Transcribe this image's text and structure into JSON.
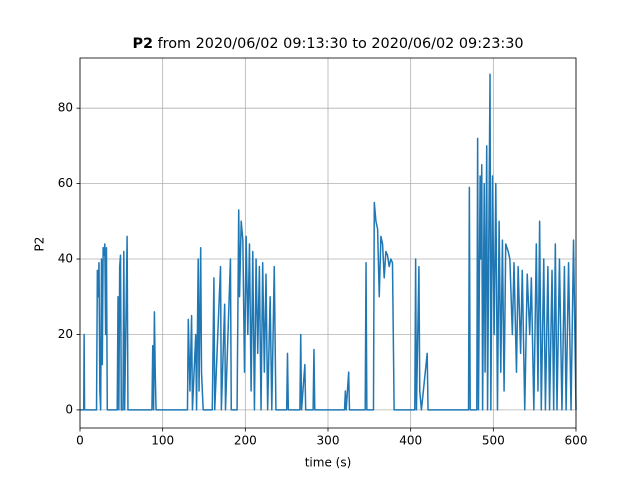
{
  "chart_data": {
    "type": "line",
    "title": {
      "bold": "P2",
      "rest": "from 2020/06/02 09:13:30 to 2020/06/02 09:23:30"
    },
    "xlabel": "time (s)",
    "ylabel": "P2",
    "color": "#1f77b4",
    "grid": true,
    "xlim": [
      0,
      600
    ],
    "ylim": [
      -4.8,
      93.3
    ],
    "xticks": [
      0,
      100,
      200,
      300,
      400,
      500,
      600
    ],
    "yticks": [
      0,
      20,
      40,
      60,
      80
    ],
    "x": [
      0,
      4.5,
      5,
      5.5,
      20,
      21,
      22,
      23,
      24,
      25,
      26,
      27,
      28,
      29,
      30,
      31,
      32,
      33,
      45,
      46,
      47,
      48,
      49,
      50,
      52,
      53,
      54,
      56,
      57,
      58,
      60,
      87,
      88,
      89,
      90,
      91,
      92,
      130,
      131,
      133,
      135,
      136,
      140,
      141,
      143,
      144,
      146,
      147,
      149,
      160,
      162,
      163,
      170,
      171,
      175,
      176,
      182,
      183,
      190,
      192,
      193,
      195,
      197,
      199,
      201,
      203,
      205,
      207,
      209,
      211,
      213,
      215,
      217,
      219,
      221,
      223,
      225,
      227,
      230,
      232,
      235,
      237,
      250,
      251,
      252,
      266,
      267,
      268,
      272,
      273,
      282,
      283,
      284,
      320,
      321,
      322,
      325,
      326,
      345,
      346,
      347,
      355,
      356,
      358,
      360,
      362,
      364,
      366,
      368,
      370,
      372,
      374,
      376,
      378,
      380,
      405,
      406,
      407,
      410,
      411,
      413,
      420,
      421,
      470,
      471,
      472,
      480,
      481,
      482,
      484,
      485,
      486,
      487,
      489,
      490,
      492,
      493,
      496,
      497,
      499,
      501,
      503,
      505,
      507,
      509,
      511,
      513,
      515,
      518,
      520,
      523,
      525,
      528,
      530,
      533,
      535,
      538,
      541,
      544,
      546,
      549,
      552,
      554,
      556,
      558,
      561,
      563,
      566,
      568,
      571,
      573,
      575,
      577,
      580,
      583,
      586,
      588,
      591,
      594,
      597,
      600
    ],
    "values": [
      0,
      0,
      20,
      0,
      0,
      37,
      30,
      39,
      5,
      0,
      40,
      12,
      43,
      41,
      44,
      20,
      43,
      0,
      0,
      30,
      0,
      38,
      41,
      0,
      0,
      42,
      0,
      30,
      46,
      0,
      0,
      0,
      17,
      0,
      26,
      10,
      0,
      0,
      24,
      5,
      25,
      0,
      20,
      0,
      40,
      5,
      43,
      10,
      0,
      0,
      35,
      0,
      38,
      0,
      28,
      0,
      40,
      0,
      0,
      53,
      30,
      50,
      45,
      10,
      46,
      20,
      44,
      5,
      42,
      0,
      40,
      15,
      38,
      0,
      39,
      10,
      36,
      0,
      30,
      0,
      38,
      0,
      0,
      15,
      0,
      0,
      20,
      0,
      12,
      0,
      0,
      16,
      0,
      0,
      5,
      0,
      10,
      0,
      0,
      39,
      0,
      0,
      55,
      50,
      48,
      30,
      46,
      44,
      35,
      42,
      41,
      38,
      40,
      39,
      0,
      0,
      40,
      0,
      38,
      5,
      0,
      15,
      0,
      0,
      59,
      0,
      0,
      72,
      0,
      62,
      40,
      65,
      0,
      60,
      10,
      70,
      0,
      89,
      0,
      62,
      20,
      60,
      0,
      50,
      10,
      45,
      5,
      44,
      42,
      40,
      20,
      39,
      10,
      38,
      15,
      37,
      0,
      36,
      20,
      35,
      0,
      44,
      5,
      50,
      0,
      40,
      0,
      38,
      0,
      37,
      0,
      44,
      0,
      40,
      0,
      38,
      0,
      39,
      0,
      45,
      0
    ]
  }
}
